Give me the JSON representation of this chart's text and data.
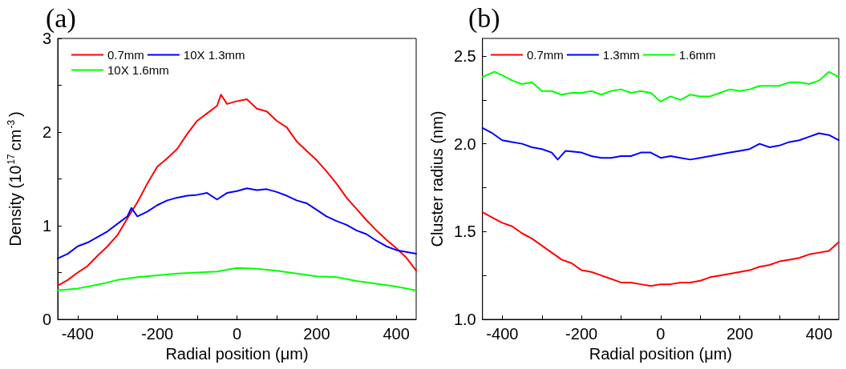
{
  "chart_data": [
    {
      "type": "line",
      "title": "(a)",
      "xlabel": "Radial position (μm)",
      "ylabel": "Density (10$^{17}$cm$^{-3}$)",
      "xlim": [
        -450,
        450
      ],
      "xticks": [
        -400,
        {
          "value": -300,
          "label": null
        },
        -200,
        {
          "value": -100,
          "label": null
        },
        0,
        {
          "value": 100,
          "label": null
        },
        200,
        {
          "value": 300,
          "label": null
        },
        400
      ],
      "ylim": [
        0,
        3
      ],
      "yticks": [
        0,
        {
          "value": 0.5,
          "label": null
        },
        1,
        {
          "value": 1.5,
          "label": null
        },
        2,
        {
          "value": 2.5,
          "label": null
        },
        3
      ],
      "grid": false,
      "legend": "top left",
      "marker": "none",
      "line_style": "solid",
      "series": [
        {
          "name": "0.7mm",
          "color": "#ff0000",
          "x": [
            -450,
            -425,
            -400,
            -375,
            -350,
            -325,
            -300,
            -275,
            -250,
            -225,
            -200,
            -175,
            -150,
            -125,
            -100,
            -75,
            -50,
            -40,
            -25,
            0,
            25,
            50,
            75,
            100,
            125,
            150,
            175,
            200,
            225,
            250,
            275,
            300,
            325,
            350,
            375,
            400,
            425,
            450
          ],
          "values": [
            0.36,
            0.42,
            0.5,
            0.57,
            0.68,
            0.78,
            0.9,
            1.08,
            1.25,
            1.45,
            1.63,
            1.72,
            1.82,
            1.98,
            2.12,
            2.2,
            2.28,
            2.4,
            2.3,
            2.33,
            2.35,
            2.25,
            2.22,
            2.12,
            2.05,
            1.9,
            1.8,
            1.7,
            1.58,
            1.45,
            1.3,
            1.18,
            1.06,
            0.95,
            0.85,
            0.76,
            0.66,
            0.52
          ]
        },
        {
          "name": "10X 1.3mm",
          "color": "#0000ff",
          "x": [
            -450,
            -425,
            -400,
            -375,
            -350,
            -325,
            -300,
            -275,
            -265,
            -250,
            -225,
            -200,
            -175,
            -150,
            -125,
            -100,
            -75,
            -50,
            -25,
            0,
            25,
            50,
            75,
            100,
            125,
            150,
            175,
            200,
            225,
            250,
            275,
            300,
            325,
            350,
            375,
            400,
            425,
            450
          ],
          "values": [
            0.65,
            0.7,
            0.78,
            0.82,
            0.88,
            0.94,
            1.02,
            1.1,
            1.19,
            1.1,
            1.15,
            1.22,
            1.27,
            1.3,
            1.32,
            1.33,
            1.35,
            1.28,
            1.35,
            1.37,
            1.4,
            1.38,
            1.39,
            1.36,
            1.32,
            1.27,
            1.24,
            1.17,
            1.1,
            1.05,
            1.01,
            0.95,
            0.91,
            0.84,
            0.78,
            0.74,
            0.72,
            0.7
          ]
        },
        {
          "name": "10X 1.6mm",
          "color": "#00ff00",
          "x": [
            -450,
            -400,
            -350,
            -300,
            -250,
            -200,
            -150,
            -100,
            -50,
            0,
            50,
            100,
            150,
            200,
            250,
            300,
            350,
            400,
            450
          ],
          "values": [
            0.31,
            0.33,
            0.37,
            0.42,
            0.45,
            0.47,
            0.49,
            0.5,
            0.51,
            0.55,
            0.54,
            0.52,
            0.49,
            0.46,
            0.45,
            0.41,
            0.38,
            0.35,
            0.31
          ]
        }
      ]
    },
    {
      "type": "line",
      "title": "(b)",
      "xlabel": "Radial position (μm)",
      "ylabel": "Cluster radius (nm)",
      "xlim": [
        -450,
        450
      ],
      "xticks": [
        -400,
        {
          "value": -300,
          "label": null
        },
        -200,
        {
          "value": -100,
          "label": null
        },
        0,
        {
          "value": 100,
          "label": null
        },
        200,
        {
          "value": 300,
          "label": null
        },
        400
      ],
      "ylim": [
        1,
        2.6
      ],
      "yticks": [
        {
          "value": 1,
          "label": "1.0"
        },
        {
          "value": 1.25,
          "label": null
        },
        1.5,
        {
          "value": 1.75,
          "label": null
        },
        {
          "value": 2,
          "label": "2.0"
        },
        {
          "value": 2.25,
          "label": null
        },
        2.5
      ],
      "grid": false,
      "legend": "top",
      "marker": "none",
      "line_style": "solid",
      "series": [
        {
          "name": "0.7mm",
          "color": "#ff0000",
          "x": [
            -450,
            -425,
            -400,
            -375,
            -350,
            -325,
            -300,
            -275,
            -250,
            -225,
            -200,
            -175,
            -150,
            -125,
            -100,
            -75,
            -50,
            -25,
            0,
            25,
            50,
            75,
            100,
            125,
            150,
            175,
            200,
            225,
            250,
            275,
            300,
            325,
            350,
            375,
            400,
            425,
            450
          ],
          "values": [
            1.61,
            1.58,
            1.55,
            1.53,
            1.49,
            1.46,
            1.42,
            1.38,
            1.34,
            1.32,
            1.28,
            1.27,
            1.25,
            1.23,
            1.21,
            1.21,
            1.2,
            1.19,
            1.2,
            1.2,
            1.21,
            1.21,
            1.22,
            1.24,
            1.25,
            1.26,
            1.27,
            1.28,
            1.3,
            1.31,
            1.33,
            1.34,
            1.35,
            1.37,
            1.38,
            1.39,
            1.44
          ]
        },
        {
          "name": "1.3mm",
          "color": "#0000ff",
          "x": [
            -450,
            -425,
            -400,
            -375,
            -350,
            -325,
            -300,
            -275,
            -260,
            -240,
            -200,
            -175,
            -150,
            -125,
            -100,
            -75,
            -50,
            -25,
            0,
            25,
            50,
            75,
            100,
            125,
            150,
            175,
            200,
            225,
            250,
            275,
            300,
            325,
            350,
            375,
            400,
            425,
            450
          ],
          "values": [
            2.09,
            2.06,
            2.02,
            2.01,
            2.0,
            1.98,
            1.97,
            1.95,
            1.91,
            1.96,
            1.95,
            1.93,
            1.92,
            1.92,
            1.93,
            1.93,
            1.95,
            1.95,
            1.92,
            1.93,
            1.92,
            1.91,
            1.92,
            1.93,
            1.94,
            1.95,
            1.96,
            1.97,
            2.0,
            1.98,
            1.99,
            2.01,
            2.02,
            2.04,
            2.06,
            2.05,
            2.02
          ]
        },
        {
          "name": "1.6mm",
          "color": "#00ff00",
          "x": [
            -450,
            -420,
            -400,
            -375,
            -350,
            -325,
            -300,
            -275,
            -250,
            -225,
            -200,
            -175,
            -150,
            -125,
            -100,
            -75,
            -50,
            -25,
            0,
            25,
            50,
            75,
            100,
            125,
            150,
            175,
            200,
            225,
            250,
            275,
            300,
            325,
            350,
            375,
            400,
            425,
            450
          ],
          "values": [
            2.38,
            2.41,
            2.39,
            2.36,
            2.34,
            2.35,
            2.3,
            2.3,
            2.28,
            2.29,
            2.29,
            2.3,
            2.28,
            2.3,
            2.31,
            2.29,
            2.3,
            2.29,
            2.24,
            2.27,
            2.25,
            2.28,
            2.27,
            2.27,
            2.29,
            2.31,
            2.3,
            2.31,
            2.33,
            2.33,
            2.33,
            2.35,
            2.35,
            2.34,
            2.36,
            2.41,
            2.38
          ]
        }
      ]
    }
  ]
}
